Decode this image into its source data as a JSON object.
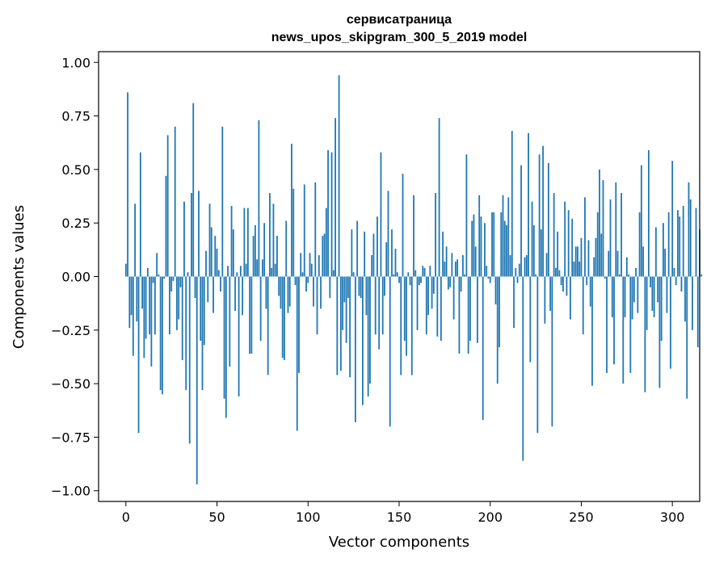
{
  "chart_data": {
    "type": "bar",
    "title_line1": "сервисатраница",
    "title_line2": "news_upos_skipgram_300_5_2019 model",
    "xlabel": "Vector components",
    "ylabel": "Components values",
    "xlim": [
      -15,
      315
    ],
    "ylim": [
      -1.05,
      1.05
    ],
    "xticks": [
      0,
      50,
      100,
      150,
      200,
      250,
      300
    ],
    "xtick_labels": [
      "0",
      "50",
      "100",
      "150",
      "200",
      "250",
      "300"
    ],
    "yticks": [
      1.0,
      0.75,
      0.5,
      0.25,
      0.0,
      -0.25,
      -0.5,
      -0.75,
      -1.0
    ],
    "ytick_labels": [
      "1.00",
      "0.75",
      "0.50",
      "0.25",
      "0.00",
      "−0.25",
      "−0.50",
      "−0.75",
      "−1.00"
    ],
    "bar_color": "#1f77b4",
    "grid": false,
    "x_start": 0,
    "values": [
      0.06,
      0.86,
      -0.24,
      -0.18,
      -0.37,
      0.34,
      -0.21,
      -0.73,
      0.58,
      -0.15,
      -0.38,
      -0.29,
      0.04,
      -0.27,
      -0.42,
      -0.03,
      -0.27,
      0.11,
      0.01,
      -0.53,
      -0.55,
      -0.01,
      0.47,
      0.66,
      -0.27,
      -0.07,
      -0.02,
      0.7,
      -0.25,
      -0.2,
      -0.05,
      -0.39,
      0.35,
      -0.53,
      0.02,
      -0.78,
      0.39,
      0.81,
      -0.1,
      -0.97,
      0.4,
      -0.3,
      -0.53,
      -0.32,
      0.12,
      -0.12,
      0.34,
      0.23,
      -0.17,
      0.19,
      0.13,
      0.03,
      -0.07,
      0.7,
      -0.57,
      -0.66,
      0.05,
      -0.42,
      0.33,
      0.22,
      -0.16,
      0.02,
      -0.56,
      0.05,
      -0.18,
      0.32,
      0.06,
      0.32,
      -0.36,
      -0.36,
      0.19,
      0.24,
      0.08,
      0.73,
      -0.3,
      0.08,
      0.25,
      -0.15,
      -0.46,
      0.39,
      0.04,
      0.34,
      0.06,
      0.19,
      -0.09,
      -0.15,
      -0.38,
      -0.39,
      0.26,
      -0.17,
      -0.14,
      0.62,
      0.41,
      -0.04,
      -0.72,
      -0.45,
      0.11,
      0.02,
      0.43,
      -0.07,
      -0.03,
      0.11,
      0.06,
      -0.14,
      0.44,
      -0.27,
      0.1,
      -0.15,
      0.19,
      0.2,
      0.32,
      0.59,
      -0.1,
      0.58,
      0.03,
      0.74,
      -0.46,
      0.94,
      -0.44,
      -0.25,
      -0.12,
      -0.31,
      -0.1,
      -0.47,
      0.22,
      0.02,
      -0.68,
      0.26,
      -0.09,
      -0.1,
      -0.6,
      0.21,
      -0.18,
      -0.56,
      -0.5,
      0.1,
      0.2,
      -0.27,
      0.28,
      -0.34,
      0.58,
      -0.27,
      -0.09,
      0.16,
      0.4,
      -0.7,
      0.22,
      0.01,
      0.13,
      0.02,
      -0.03,
      -0.46,
      0.48,
      -0.3,
      -0.37,
      0.02,
      -0.04,
      -0.46,
      0.38,
      0.03,
      -0.25,
      -0.04,
      -0.03,
      0.05,
      0.04,
      -0.27,
      -0.18,
      0.05,
      -0.15,
      -0.08,
      0.39,
      -0.28,
      0.74,
      -0.3,
      0.21,
      0.07,
      0.14,
      -0.06,
      -0.05,
      0.11,
      -0.2,
      0.07,
      0.08,
      -0.36,
      -0.07,
      0.1,
      0.01,
      0.57,
      -0.36,
      -0.3,
      0.26,
      0.29,
      0.14,
      -0.31,
      0.38,
      0.28,
      -0.67,
      0.25,
      0.05,
      -0.01,
      -0.03,
      0.3,
      0.3,
      -0.13,
      -0.5,
      -0.33,
      0.3,
      0.38,
      0.26,
      0.24,
      0.37,
      0.1,
      0.68,
      -0.24,
      0.04,
      -0.03,
      0.06,
      0.52,
      -0.86,
      0.09,
      0.1,
      0.67,
      -0.4,
      0.35,
      0.24,
      0.01,
      -0.73,
      0.57,
      0.22,
      0.61,
      -0.22,
      0.11,
      0.53,
      -0.16,
      -0.7,
      0.39,
      0.04,
      0.21,
      0.03,
      -0.04,
      -0.07,
      0.35,
      -0.09,
      0.31,
      -0.2,
      0.27,
      0.07,
      0.14,
      0.14,
      0.07,
      0.18,
      -0.27,
      0.37,
      -0.04,
      0.17,
      -0.14,
      -0.51,
      0.09,
      0.18,
      0.3,
      0.5,
      0.2,
      0.45,
      -0.01,
      -0.45,
      0.12,
      0.36,
      -0.19,
      -0.41,
      0.44,
      0.12,
      0.01,
      0.39,
      -0.5,
      -0.19,
      0.09,
      0.01,
      -0.45,
      -0.2,
      -0.12,
      0.04,
      -0.17,
      0.3,
      0.52,
      0.14,
      -0.54,
      -0.25,
      0.59,
      -0.05,
      -0.16,
      -0.19,
      0.23,
      -0.12,
      -0.52,
      -0.3,
      0.25,
      0.13,
      -0.17,
      0.3,
      -0.43,
      0.54,
      0.04,
      -0.04,
      0.31,
      0.28,
      -0.07,
      0.33,
      -0.21,
      -0.57,
      0.44,
      0.36,
      -0.25,
      0.0,
      0.32,
      -0.33,
      0.22,
      0.01
    ]
  }
}
